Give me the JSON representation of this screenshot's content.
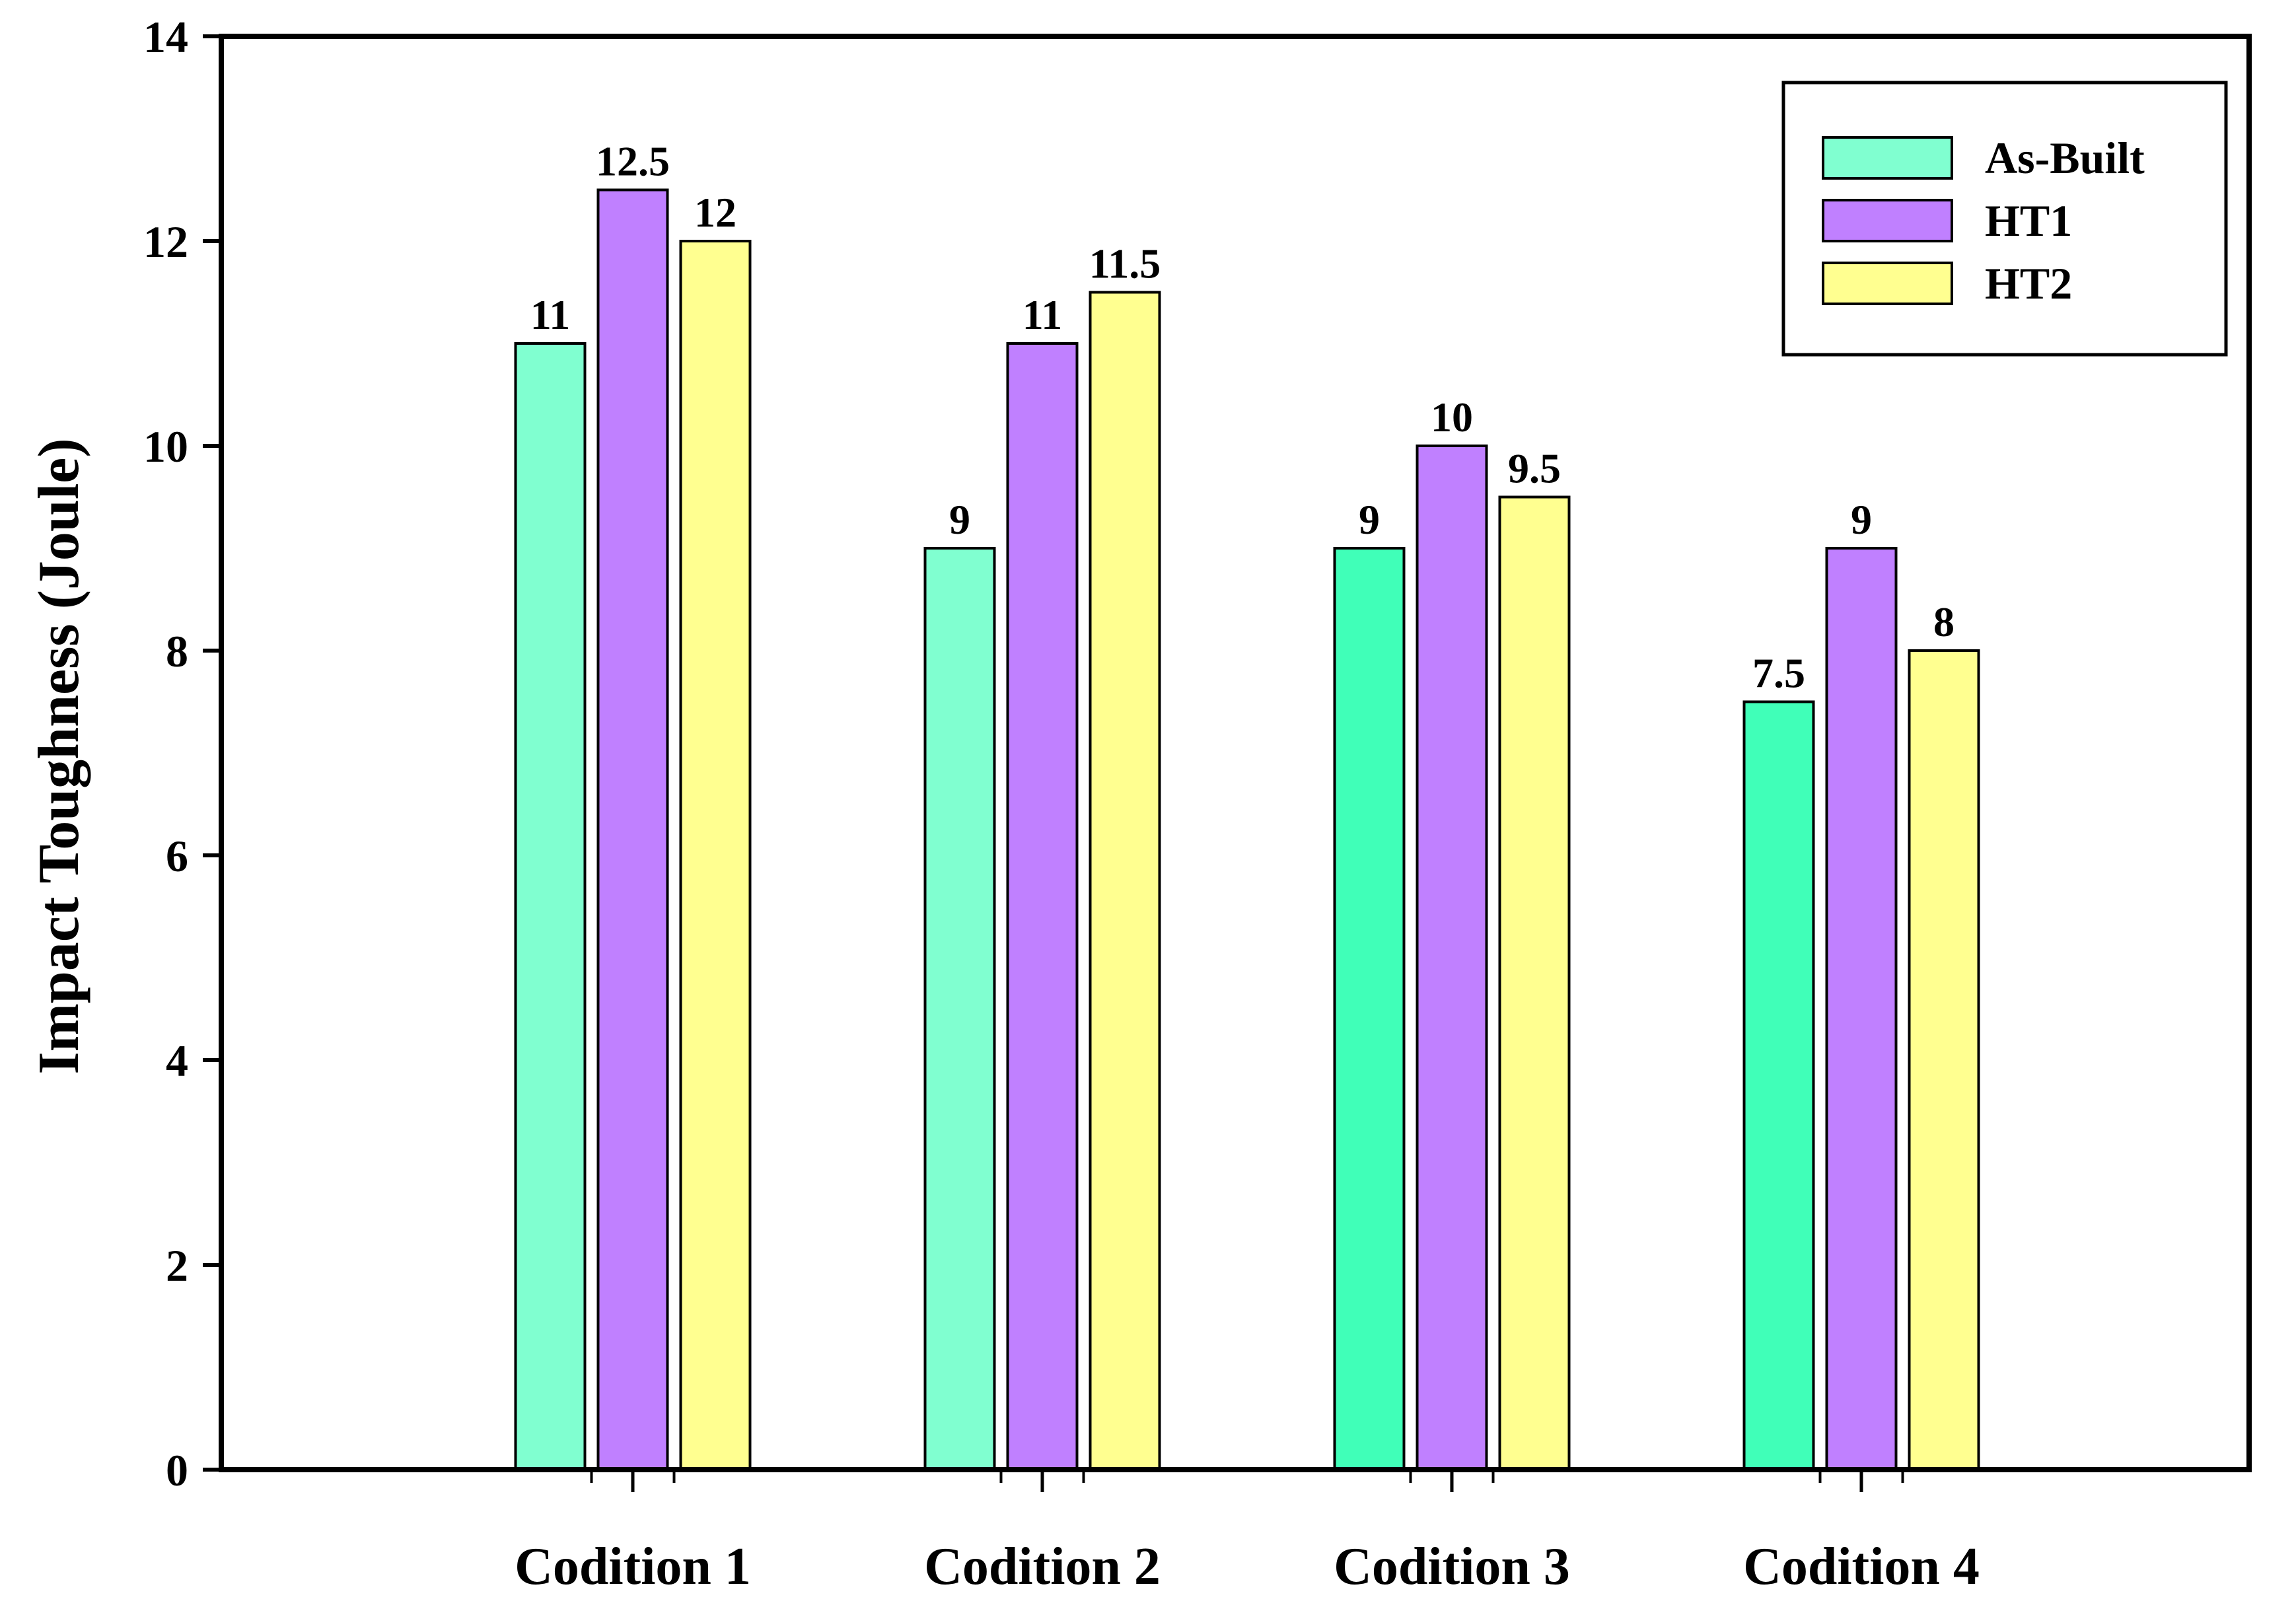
{
  "chart_data": {
    "type": "bar",
    "title": "",
    "xlabel": "",
    "ylabel": "Impact Toughness (Joule)",
    "ylim": [
      0,
      14
    ],
    "yticks": [
      0,
      2,
      4,
      6,
      8,
      10,
      12,
      14
    ],
    "yticks_labels": [
      "0",
      "2",
      "4",
      "6",
      "8",
      "10",
      "12",
      "14"
    ],
    "categories": [
      "Codition 1",
      "Codition 2",
      "Codition 3",
      "Codition 4"
    ],
    "series": [
      {
        "name": "As-Built",
        "values": [
          11,
          9,
          9,
          7.5
        ],
        "labels": [
          "11",
          "9",
          "9",
          "7.5"
        ],
        "colors": [
          "#80FFD0",
          "#80FFD0",
          "#40FFB8",
          "#40FFB8"
        ]
      },
      {
        "name": "HT1",
        "values": [
          12.5,
          11,
          10,
          9
        ],
        "labels": [
          "12.5",
          "11",
          "10",
          "9"
        ],
        "colors": [
          "#C080FF",
          "#C080FF",
          "#C080FF",
          "#C080FF"
        ]
      },
      {
        "name": "HT2",
        "values": [
          12,
          11.5,
          9.5,
          8
        ],
        "labels": [
          "12",
          "11.5",
          "9.5",
          "8"
        ],
        "colors": [
          "#FFFF90",
          "#FFFF90",
          "#FFFF90",
          "#FFFF90"
        ]
      }
    ],
    "legend": {
      "position": "top-right",
      "entries": [
        {
          "name": "As-Built",
          "color": "#80FFD0"
        },
        {
          "name": "HT1",
          "color": "#C080FF"
        },
        {
          "name": "HT2",
          "color": "#FFFF90"
        }
      ]
    },
    "grid": false
  }
}
